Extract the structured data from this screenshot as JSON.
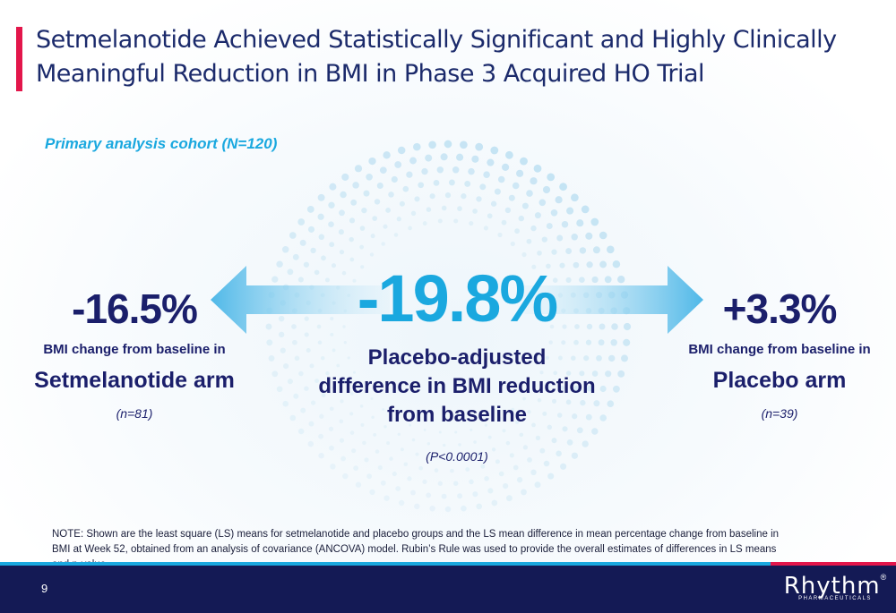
{
  "slide": {
    "title": "Setmelanotide Achieved Statistically Significant and Highly Clinically Meaningful Reduction in BMI in Phase 3 Acquired HO Trial",
    "cohort_label": "Primary analysis cohort (N=120)",
    "left": {
      "value": "-16.5%",
      "description": "BMI change from baseline in",
      "arm": "Setmelanotide arm",
      "n": "(n=81)"
    },
    "center": {
      "value": "-19.8%",
      "description_lines": [
        "Placebo-adjusted",
        "difference in BMI reduction",
        "from baseline"
      ],
      "p_value": "(P<0.0001)"
    },
    "right": {
      "value": "+3.3%",
      "description": "BMI change from baseline in",
      "arm": "Placebo arm",
      "n": "(n=39)"
    },
    "note": "NOTE: Shown are the least square (LS) means for setmelanotide and placebo groups and the LS mean difference in mean percentage change from baseline in BMI at Week 52, obtained from an analysis of covariance (ANCOVA) model. Rubin’s Rule was used to provide the overall estimates of differences in LS means and p-value.",
    "page_number": "9"
  },
  "logo": {
    "name": "Rhythm",
    "registered": "®",
    "subtitle": "PHARMACEUTICALS"
  },
  "colors": {
    "navy": "#1b1f6b",
    "accent_blue": "#1aa8df",
    "accent_red": "#e3164b",
    "footer": "#141a55"
  },
  "icons": [
    "arrow-left-icon",
    "arrow-right-icon",
    "dot-ring-decoration"
  ]
}
